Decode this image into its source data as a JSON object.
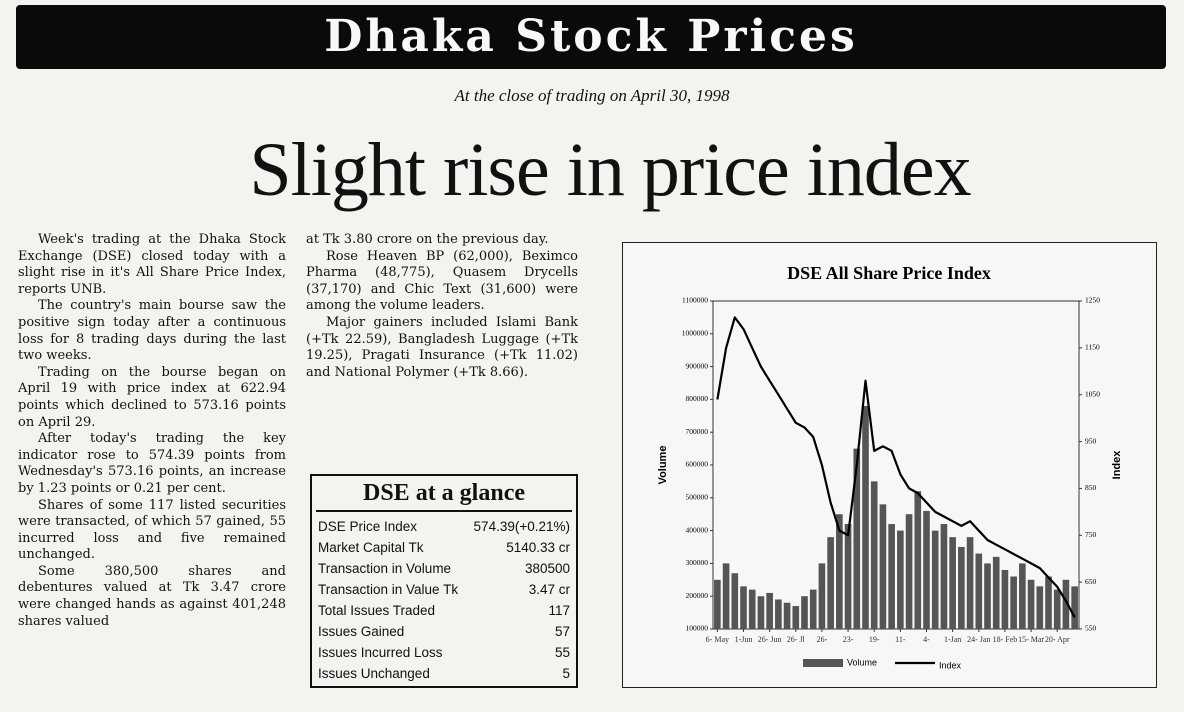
{
  "header": {
    "title": "Dhaka Stock Prices",
    "subtitle": "At the close of trading on April 30, 1998"
  },
  "headline": "Slight rise in price index",
  "article": {
    "column_1": [
      "Week's trading at the Dhaka Stock Exchange (DSE) closed today with a slight rise in it's All Share Price Index, reports UNB.",
      "The country's main bourse saw the positive sign today after a continuous loss for 8 trading days during the last two weeks.",
      "Trading on the bourse began on April 19 with price index at 622.94 points which declined to 573.16 points on April 29.",
      "After today's trading the key indicator rose to 574.39 points from Wednesday's 573.16 points, an increase by 1.23 points or 0.21 per cent.",
      "Shares of some 117 listed securities were transacted, of which 57 gained, 55 incurred loss and five remained unchanged.",
      "Some 380,500 shares and debentures valued at Tk 3.47 crore were changed hands as against 401,248 shares valued"
    ],
    "column_2": [
      "at Tk 3.80 crore on the previous day.",
      "Rose Heaven BP (62,000), Beximco Pharma (48,775), Quasem Drycells (37,170) and Chic Text (31,600) were among the volume leaders.",
      "Major gainers included Islami Bank (+Tk 22.59), Bangladesh Luggage (+Tk 19.25), Pragati Insurance (+Tk 11.02) and National Polymer (+Tk 8.66)."
    ]
  },
  "glance": {
    "title": "DSE at a glance",
    "rows": [
      [
        "DSE Price Index",
        "574.39(+0.21%)"
      ],
      [
        "Market Capital Tk",
        "5140.33 cr"
      ],
      [
        "Transaction in Volume",
        "380500"
      ],
      [
        "Transaction in Value Tk",
        "3.47 cr"
      ],
      [
        "Total Issues Traded",
        "117"
      ],
      [
        "Issues Gained",
        "57"
      ],
      [
        "Issues Incurred Loss",
        "55"
      ],
      [
        "Issues Unchanged",
        "5"
      ]
    ]
  },
  "chart_data": {
    "type": "bar-line",
    "title": "DSE All Share Price Index",
    "y_label": "Volume",
    "y2_label": "Index",
    "categories": [
      "6- May",
      null,
      null,
      "1-Jun",
      null,
      null,
      "26- Jun",
      null,
      null,
      "26- Jl",
      null,
      null,
      "26-",
      null,
      null,
      "23-",
      null,
      null,
      "19-",
      null,
      null,
      "11-",
      null,
      null,
      "4-",
      null,
      null,
      "1-Jan",
      null,
      null,
      "24- Jan",
      null,
      null,
      "18- Feb",
      null,
      null,
      "15- Mar",
      null,
      null,
      "20- Apr",
      null,
      null
    ],
    "ylim": [
      100000,
      1100000
    ],
    "yticks": [
      100000,
      200000,
      300000,
      400000,
      500000,
      600000,
      700000,
      800000,
      900000,
      1000000,
      1100000
    ],
    "y2lim": [
      550,
      1250
    ],
    "y2ticks": [
      550,
      650,
      750,
      850,
      950,
      1050,
      1150,
      1250
    ],
    "series": [
      {
        "name": "Volume",
        "color": "#555555",
        "values": [
          250000,
          300000,
          270000,
          230000,
          220000,
          200000,
          210000,
          190000,
          180000,
          170000,
          200000,
          220000,
          300000,
          380000,
          450000,
          420000,
          650000,
          780000,
          550000,
          480000,
          420000,
          400000,
          450000,
          520000,
          460000,
          400000,
          420000,
          380000,
          350000,
          380000,
          330000,
          300000,
          320000,
          280000,
          260000,
          300000,
          250000,
          230000,
          260000,
          220000,
          250000,
          230000
        ]
      },
      {
        "name": "Index",
        "color": "#000000",
        "axis": "y2",
        "values": [
          1040,
          1150,
          1215,
          1190,
          1150,
          1110,
          1080,
          1050,
          1020,
          990,
          980,
          960,
          900,
          820,
          760,
          750,
          900,
          1080,
          930,
          940,
          930,
          880,
          850,
          840,
          820,
          800,
          790,
          780,
          770,
          780,
          760,
          740,
          730,
          720,
          710,
          700,
          690,
          680,
          660,
          640,
          610,
          575
        ]
      }
    ]
  }
}
